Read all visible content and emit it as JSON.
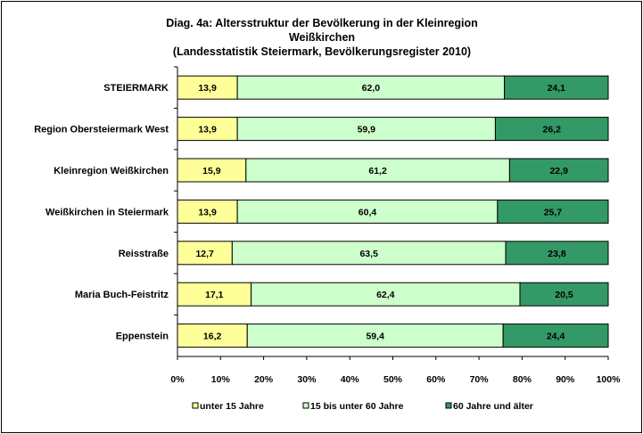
{
  "chart_data": {
    "type": "bar",
    "orientation": "horizontal",
    "stacked": "percent",
    "title_lines": [
      "Diag. 4a: Altersstruktur  der Bevölkerung  in der Kleinregion",
      "Weißkirchen",
      "(Landesstatistik  Steiermark,  Bevölkerungsregister  2010)"
    ],
    "categories": [
      "STEIERMARK",
      "Region Obersteiermark West",
      "Kleinregion Weißkirchen",
      "Weißkirchen in Steiermark",
      "Reisstraße",
      "Maria Buch-Feistritz",
      "Eppenstein"
    ],
    "series": [
      {
        "name": "unter 15 Jahre",
        "color": "#ffff99",
        "values": [
          13.9,
          13.9,
          15.9,
          13.9,
          12.7,
          17.1,
          16.2
        ],
        "labels": [
          "13,9",
          "13,9",
          "15,9",
          "13,9",
          "12,7",
          "17,1",
          "16,2"
        ]
      },
      {
        "name": "15 bis unter 60 Jahre",
        "color": "#ccffcc",
        "values": [
          62.0,
          59.9,
          61.2,
          60.4,
          63.5,
          62.4,
          59.4
        ],
        "labels": [
          "62,0",
          "59,9",
          "61,2",
          "60,4",
          "63,5",
          "62,4",
          "59,4"
        ]
      },
      {
        "name": "60 Jahre und älter",
        "color": "#339966",
        "values": [
          24.1,
          26.2,
          22.9,
          25.7,
          23.8,
          20.5,
          24.4
        ],
        "labels": [
          "24,1",
          "26,2",
          "22,9",
          "25,7",
          "23,8",
          "20,5",
          "24,4"
        ]
      }
    ],
    "xlim": [
      0,
      100
    ],
    "x_ticks": [
      "0%",
      "10%",
      "20%",
      "30%",
      "40%",
      "50%",
      "60%",
      "70%",
      "80%",
      "90%",
      "100%"
    ],
    "grid": false,
    "legend_position": "bottom"
  }
}
